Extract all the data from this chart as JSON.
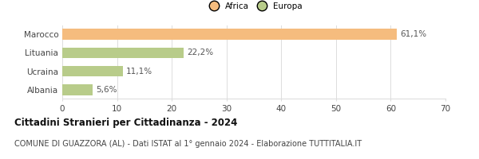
{
  "categories": [
    "Marocco",
    "Lituania",
    "Ucraina",
    "Albania"
  ],
  "values": [
    61.1,
    22.2,
    11.1,
    5.6
  ],
  "labels": [
    "61,1%",
    "22,2%",
    "11,1%",
    "5,6%"
  ],
  "bar_colors": [
    "#f5bc7e",
    "#b8cc8a",
    "#b8cc8a",
    "#b8cc8a"
  ],
  "legend_items": [
    {
      "label": "Africa",
      "color": "#f5bc7e"
    },
    {
      "label": "Europa",
      "color": "#b8cc8a"
    }
  ],
  "xlim": [
    0,
    70
  ],
  "xticks": [
    0,
    10,
    20,
    30,
    40,
    50,
    60,
    70
  ],
  "title": "Cittadini Stranieri per Cittadinanza - 2024",
  "subtitle": "COMUNE DI GUAZZORA (AL) - Dati ISTAT al 1° gennaio 2024 - Elaborazione TUTTITALIA.IT",
  "title_fontsize": 8.5,
  "subtitle_fontsize": 7.0,
  "label_fontsize": 7.5,
  "tick_fontsize": 7.5,
  "background_color": "#ffffff",
  "grid_color": "#dddddd"
}
